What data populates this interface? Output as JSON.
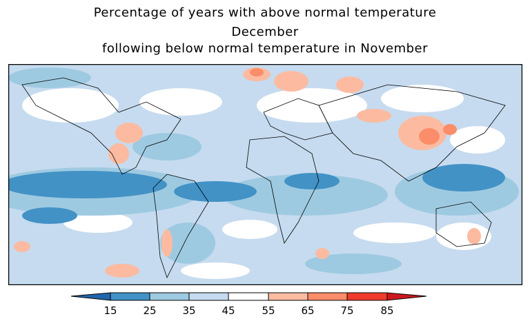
{
  "title": {
    "line1": "Percentage of years with above normal temperature",
    "line2": "December",
    "line3": "following below normal temperature in November"
  },
  "legend": {
    "ticks": [
      "15",
      "25",
      "35",
      "45",
      "55",
      "65",
      "75",
      "85"
    ],
    "colors": {
      "below_15": "#2166ac",
      "15_25": "#4292c6",
      "25_35": "#9ecae1",
      "35_45": "#c6dbef",
      "45_55": "#ffffff",
      "55_65": "#fcbba1",
      "65_75": "#fc8d6a",
      "75_85": "#ef3b2c",
      "above_85": "#cb181d"
    }
  }
}
